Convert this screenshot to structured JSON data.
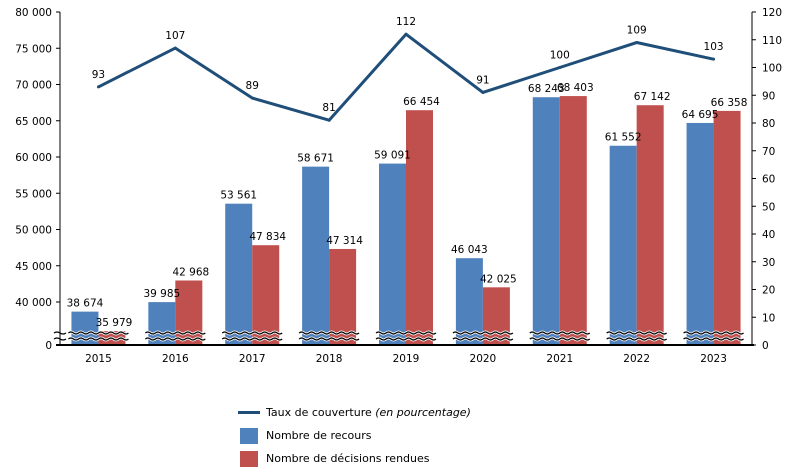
{
  "chart_data": {
    "type": "bar",
    "title": "",
    "xlabel": "",
    "ylabel": "",
    "y2label": "",
    "categories": [
      "2015",
      "2016",
      "2017",
      "2018",
      "2019",
      "2020",
      "2021",
      "2022",
      "2023"
    ],
    "series": [
      {
        "name": "Nombre de recours",
        "type": "bar",
        "axis": "left",
        "color": "#4f81bd",
        "values": [
          38674,
          39985,
          53561,
          58671,
          59091,
          46043,
          68243,
          61552,
          64695
        ],
        "labels": [
          "38 674",
          "39 985",
          "53 561",
          "58 671",
          "59 091",
          "46 043",
          "68 243",
          "61 552",
          "64 695"
        ]
      },
      {
        "name": "Nombre de décisions rendues",
        "type": "bar",
        "axis": "left",
        "color": "#c0504d",
        "values": [
          35979,
          42968,
          47834,
          47314,
          66454,
          42025,
          68403,
          67142,
          66358
        ],
        "labels": [
          "35 979",
          "42 968",
          "47 834",
          "47 314",
          "66 454",
          "42 025",
          "68 403",
          "67 142",
          "66 358"
        ]
      },
      {
        "name": "Taux de couverture",
        "name_suffix": "(en pourcentage)",
        "type": "line",
        "axis": "right",
        "color": "#1f4e79",
        "values": [
          93,
          107,
          89,
          81,
          112,
          91,
          100,
          109,
          103
        ],
        "labels": [
          "93",
          "107",
          "89",
          "81",
          "112",
          "91",
          "100",
          "109",
          "103"
        ]
      }
    ],
    "y_axis_left": {
      "range": [
        0,
        80000
      ],
      "broken_below": 40000,
      "ticks": [
        0,
        40000,
        45000,
        50000,
        55000,
        60000,
        65000,
        70000,
        75000,
        80000
      ],
      "tick_labels": [
        "0",
        "40 000",
        "45 000",
        "50 000",
        "55 000",
        "60 000",
        "65 000",
        "70 000",
        "75 000",
        "80 000"
      ]
    },
    "y_axis_right": {
      "range": [
        0,
        120
      ],
      "ticks": [
        0,
        10,
        20,
        30,
        40,
        50,
        60,
        70,
        80,
        90,
        100,
        110,
        120
      ],
      "tick_labels": [
        "0",
        "10",
        "20",
        "30",
        "40",
        "50",
        "60",
        "70",
        "80",
        "90",
        "100",
        "110",
        "120"
      ]
    },
    "grid": false,
    "legend_position": "bottom"
  },
  "legend": {
    "line_label": "Taux de couverture",
    "line_label_italic": "(en pourcentage)",
    "bar1_label": "Nombre de recours",
    "bar2_label": "Nombre de décisions rendues"
  }
}
